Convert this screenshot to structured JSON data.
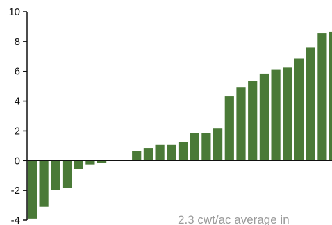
{
  "chart_data": {
    "type": "bar",
    "title": "",
    "xlabel": "",
    "ylabel": "",
    "ylim": [
      -4,
      10
    ],
    "y_ticks": [
      {
        "value": 10,
        "label": "10"
      },
      {
        "value": 8,
        "label": "8"
      },
      {
        "value": 6,
        "label": "6"
      },
      {
        "value": 4,
        "label": "4"
      },
      {
        "value": 2,
        "label": "2"
      },
      {
        "value": 0,
        "label": "0"
      },
      {
        "value": -2,
        "label": "-2"
      },
      {
        "value": -4,
        "label": "-4"
      }
    ],
    "values": [
      -3.9,
      -3.1,
      -1.95,
      -1.85,
      -0.55,
      -0.25,
      -0.15,
      0,
      0,
      0.65,
      0.85,
      1.05,
      1.05,
      1.25,
      1.85,
      1.85,
      2.15,
      4.35,
      4.95,
      5.35,
      5.85,
      6.1,
      6.25,
      6.85,
      7.6,
      8.55,
      8.65
    ],
    "bar_color": "#4a7a37",
    "grid": false,
    "legend": "none",
    "annotation": "2.3 cwt/ac average in"
  }
}
